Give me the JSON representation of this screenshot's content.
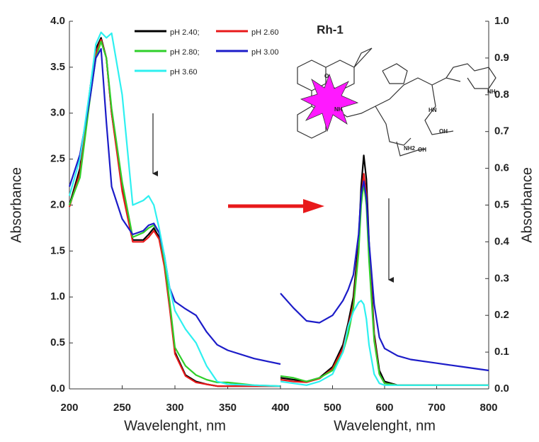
{
  "chart_data": [
    {
      "type": "line",
      "x_label": "Wavelenght, nm",
      "y_label": "Absorbance",
      "x": [
        200,
        210,
        220,
        225,
        230,
        235,
        240,
        250,
        260,
        270,
        275,
        280,
        285,
        290,
        295,
        300,
        310,
        320,
        330,
        340,
        350,
        375,
        400
      ],
      "xlim": [
        200,
        400
      ],
      "xticks": [
        200,
        250,
        300,
        350,
        400
      ],
      "ylim": [
        0,
        4
      ],
      "yticks": [
        {
          "value": 0,
          "label": "0.0"
        },
        0.5,
        {
          "value": 1,
          "label": "1.0"
        },
        1.5,
        {
          "value": 2,
          "label": "2.0"
        },
        2.5,
        {
          "value": 3,
          "label": "3.0"
        },
        3.5,
        {
          "value": 4,
          "label": "4.0"
        }
      ],
      "series": [
        {
          "name": "pH 2.40;",
          "color": "#000000",
          "values": [
            2.0,
            2.4,
            3.3,
            3.7,
            3.82,
            3.6,
            3.0,
            2.2,
            1.62,
            1.62,
            1.68,
            1.75,
            1.65,
            1.35,
            0.9,
            0.4,
            0.15,
            0.08,
            0.05,
            0.03,
            0.03,
            0.03,
            0.03
          ]
        },
        {
          "name": "pH 2.60",
          "color": "#e8191b",
          "values": [
            1.98,
            2.35,
            3.25,
            3.65,
            3.8,
            3.6,
            3.0,
            2.15,
            1.6,
            1.6,
            1.65,
            1.72,
            1.63,
            1.33,
            0.88,
            0.38,
            0.14,
            0.07,
            0.05,
            0.03,
            0.03,
            0.03,
            0.03
          ]
        },
        {
          "name": "pH 2.80;",
          "color": "#2fcf2a",
          "values": [
            2.0,
            2.3,
            3.2,
            3.6,
            3.78,
            3.6,
            3.05,
            2.25,
            1.65,
            1.7,
            1.75,
            1.78,
            1.7,
            1.4,
            0.95,
            0.45,
            0.25,
            0.15,
            0.1,
            0.07,
            0.07,
            0.04,
            0.03
          ]
        },
        {
          "name": "pH 3.00",
          "color": "#1c1cc8",
          "values": [
            2.2,
            2.55,
            3.2,
            3.6,
            3.7,
            2.9,
            2.2,
            1.85,
            1.68,
            1.72,
            1.78,
            1.8,
            1.7,
            1.45,
            1.1,
            0.95,
            0.87,
            0.8,
            0.62,
            0.48,
            0.42,
            0.33,
            0.27
          ]
        },
        {
          "name": "pH 3.60",
          "color": "#2ef0f0",
          "values": [
            2.1,
            2.5,
            3.3,
            3.75,
            3.88,
            3.82,
            3.87,
            3.2,
            2.0,
            2.05,
            2.1,
            2.0,
            1.75,
            1.45,
            1.1,
            0.85,
            0.65,
            0.5,
            0.25,
            0.08,
            0.05,
            0.04,
            0.03
          ]
        }
      ]
    },
    {
      "type": "line",
      "title": "Rh-1",
      "x_label": "Wavelenght, nm",
      "y_label": "Absorbance",
      "structure_labels": [
        "NH",
        "HN",
        "NH",
        "OH",
        "OH",
        "NH2",
        "O"
      ],
      "x": [
        400,
        425,
        450,
        475,
        500,
        520,
        530,
        540,
        550,
        555,
        560,
        565,
        570,
        580,
        590,
        600,
        625,
        650,
        700,
        750,
        800
      ],
      "xlim": [
        400,
        800
      ],
      "xticks": [
        400,
        500,
        600,
        700,
        800
      ],
      "ylim": [
        0,
        1
      ],
      "yticks": [
        {
          "value": 0,
          "label": "0.0"
        },
        0.1,
        0.2,
        0.3,
        0.4,
        0.5,
        0.6,
        0.7,
        0.8,
        0.9,
        {
          "value": 1,
          "label": "1.0"
        }
      ],
      "series": [
        {
          "color": "#000000",
          "values": [
            0.03,
            0.025,
            0.02,
            0.03,
            0.06,
            0.12,
            0.18,
            0.25,
            0.4,
            0.55,
            0.635,
            0.57,
            0.4,
            0.15,
            0.05,
            0.02,
            0.01,
            0.01,
            0.01,
            0.01,
            0.01
          ]
        },
        {
          "color": "#e8191b",
          "values": [
            0.025,
            0.02,
            0.018,
            0.028,
            0.055,
            0.11,
            0.17,
            0.23,
            0.38,
            0.52,
            0.585,
            0.53,
            0.37,
            0.14,
            0.04,
            0.015,
            0.01,
            0.01,
            0.01,
            0.01,
            0.01
          ]
        },
        {
          "color": "#2fcf2a",
          "values": [
            0.035,
            0.03,
            0.02,
            0.03,
            0.05,
            0.1,
            0.15,
            0.22,
            0.37,
            0.5,
            0.56,
            0.5,
            0.35,
            0.13,
            0.04,
            0.015,
            0.01,
            0.01,
            0.01,
            0.01,
            0.01
          ]
        },
        {
          "color": "#1c1cc8",
          "values": [
            0.26,
            0.22,
            0.185,
            0.18,
            0.2,
            0.24,
            0.27,
            0.31,
            0.42,
            0.53,
            0.565,
            0.52,
            0.4,
            0.23,
            0.14,
            0.11,
            0.09,
            0.08,
            0.07,
            0.06,
            0.05
          ]
        },
        {
          "color": "#2ef0f0",
          "values": [
            0.02,
            0.015,
            0.01,
            0.02,
            0.04,
            0.1,
            0.17,
            0.21,
            0.235,
            0.24,
            0.23,
            0.19,
            0.12,
            0.04,
            0.015,
            0.01,
            0.01,
            0.01,
            0.01,
            0.01,
            0.01
          ]
        }
      ]
    }
  ]
}
